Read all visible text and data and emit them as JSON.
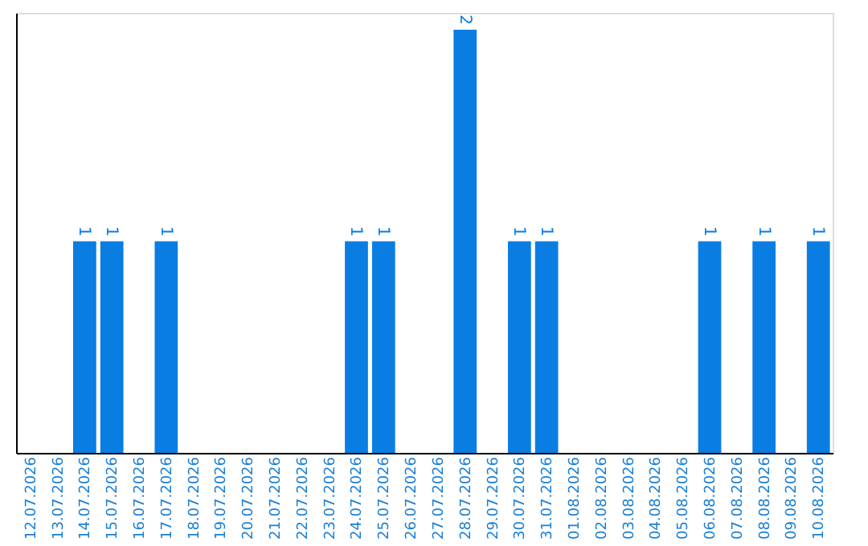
{
  "chart_data": {
    "type": "bar",
    "categories": [
      "12.07.2026",
      "13.07.2026",
      "14.07.2026",
      "15.07.2026",
      "16.07.2026",
      "17.07.2026",
      "18.07.2026",
      "19.07.2026",
      "20.07.2026",
      "21.07.2026",
      "22.07.2026",
      "23.07.2026",
      "24.07.2026",
      "25.07.2026",
      "26.07.2026",
      "27.07.2026",
      "28.07.2026",
      "29.07.2026",
      "30.07.2026",
      "31.07.2026",
      "01.08.2026",
      "02.08.2026",
      "03.08.2026",
      "04.08.2026",
      "05.08.2026",
      "06.08.2026",
      "07.08.2026",
      "08.08.2026",
      "09.08.2026",
      "10.08.2026"
    ],
    "values": [
      0,
      0,
      1,
      1,
      0,
      1,
      0,
      0,
      0,
      0,
      0,
      0,
      1,
      1,
      0,
      0,
      2,
      0,
      1,
      1,
      0,
      0,
      0,
      0,
      0,
      1,
      0,
      1,
      0,
      1
    ],
    "value_labels": [
      null,
      null,
      "1",
      "1",
      null,
      "1",
      null,
      null,
      null,
      null,
      null,
      null,
      "1",
      "1",
      null,
      null,
      "2",
      null,
      "1",
      "1",
      null,
      null,
      null,
      null,
      null,
      "1",
      null,
      "1",
      null,
      "1"
    ],
    "color": "#0a7de3",
    "ylim": [
      0,
      2.08
    ],
    "tick_labels": "x",
    "grid": false
  }
}
